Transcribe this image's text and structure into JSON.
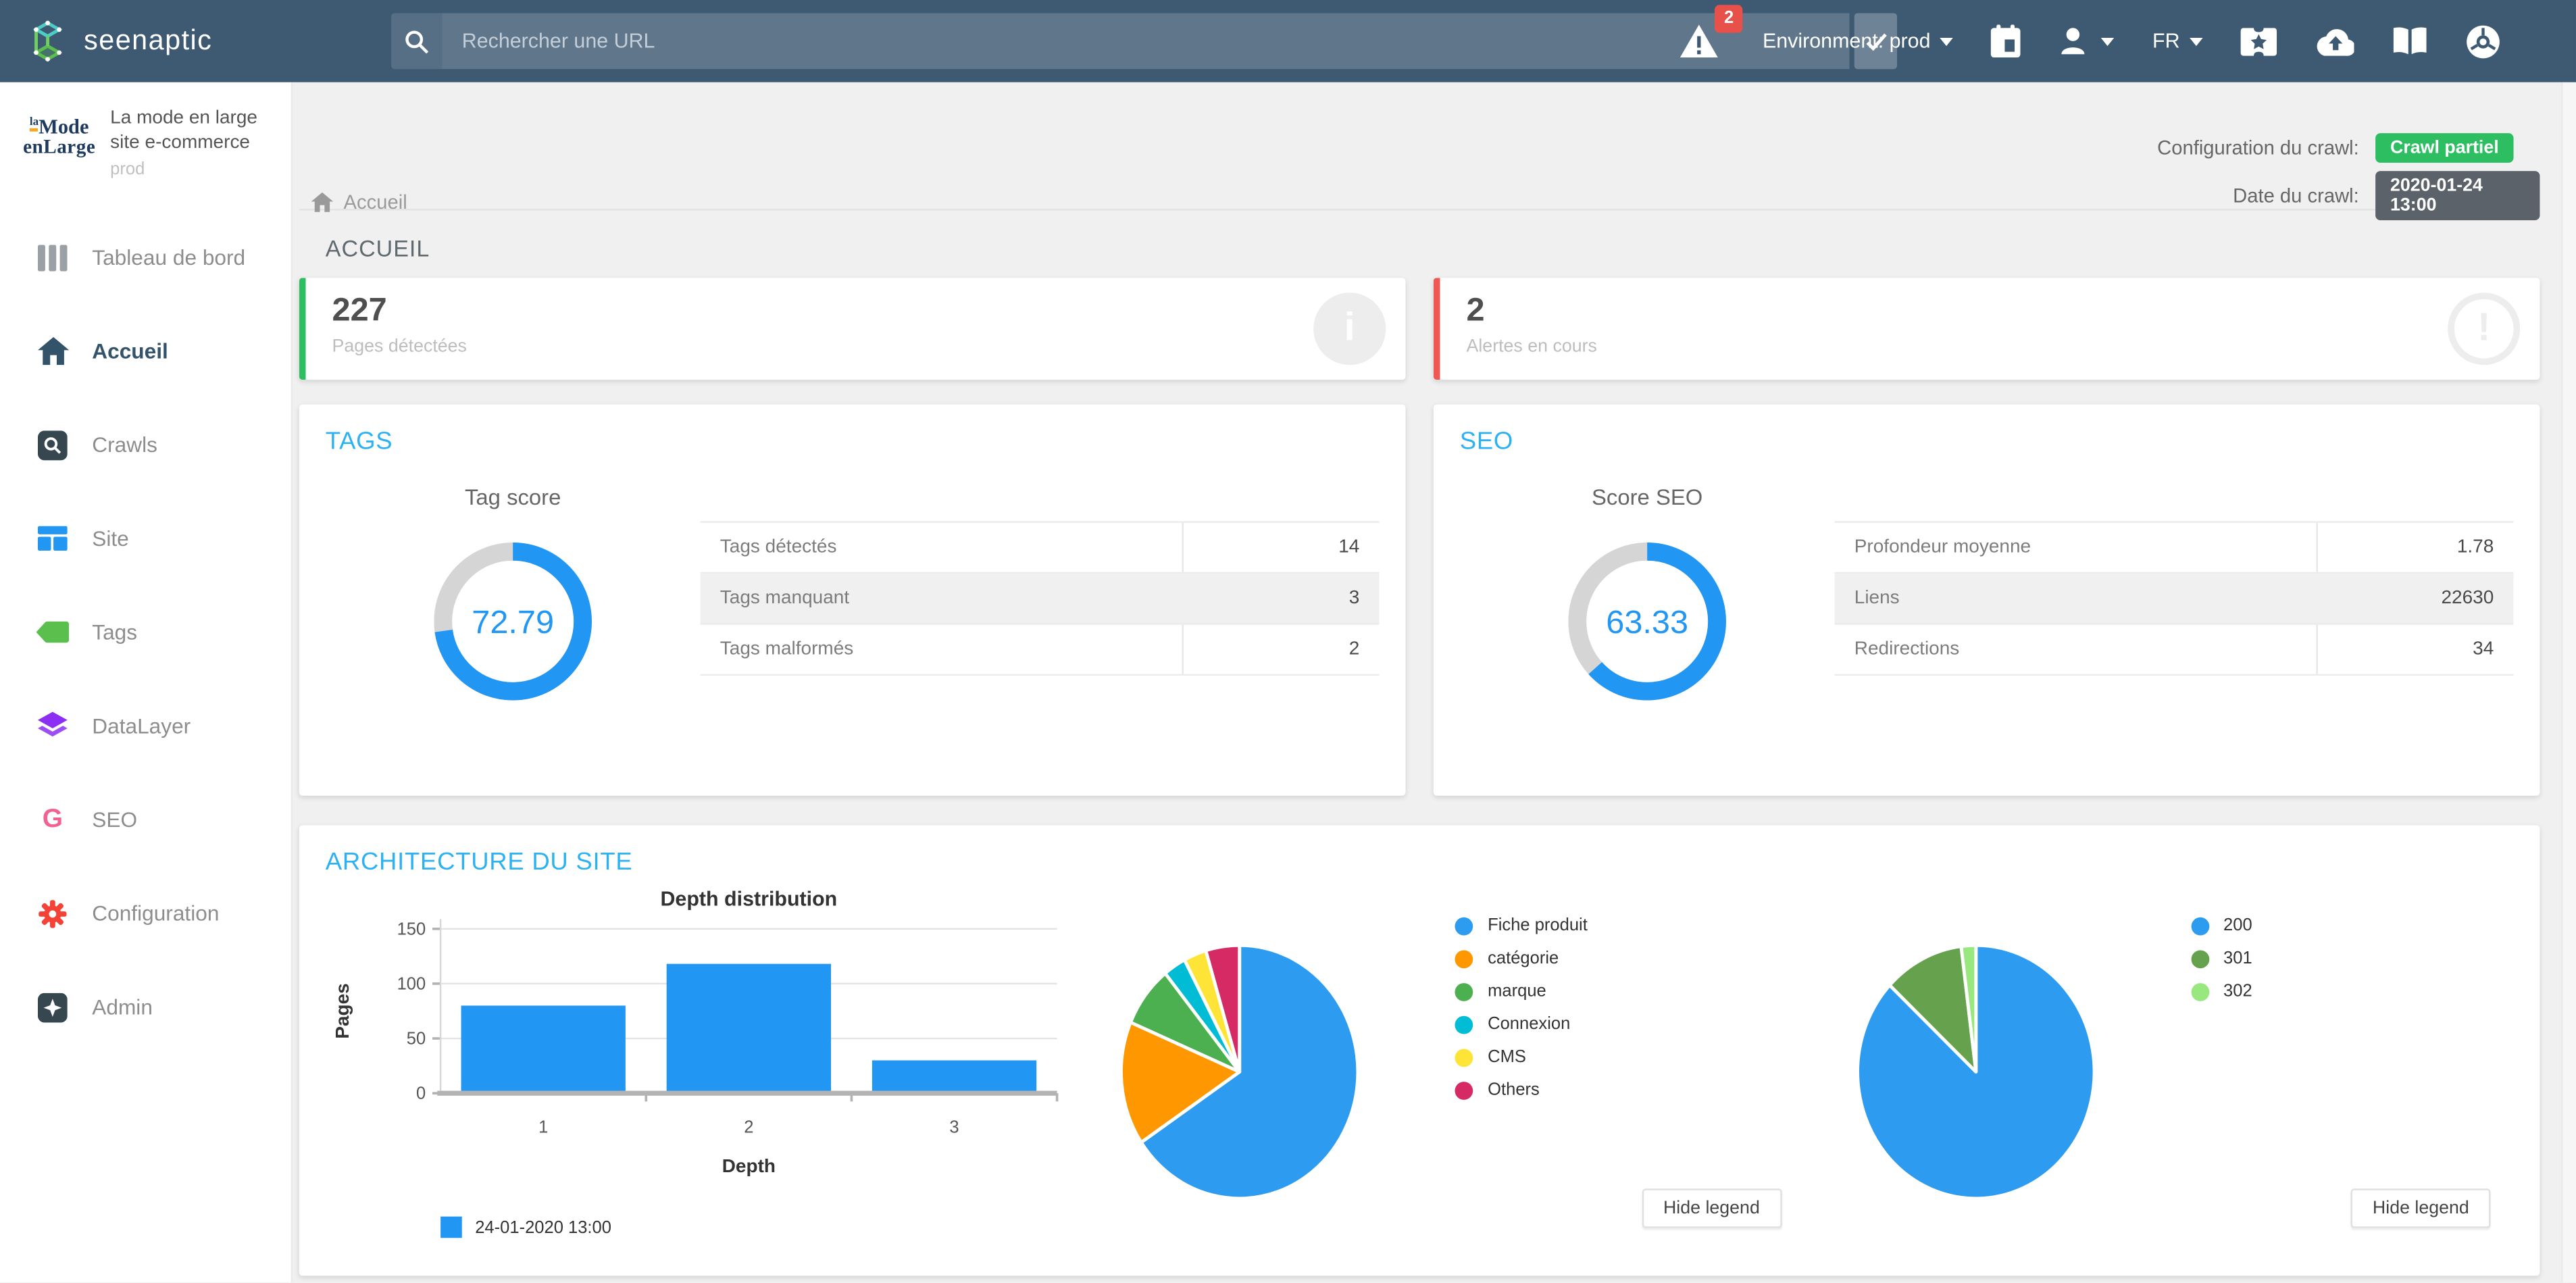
{
  "navbar": {
    "brand": "seenaptic",
    "search": {
      "placeholder": "Rechercher une URL"
    },
    "alerts_badge": "2",
    "environment_label": "Environment: prod",
    "language": "FR",
    "icons": [
      "search-icon",
      "check-icon",
      "warning-triangle-icon",
      "calendar-icon",
      "user-icon",
      "ticket-icon",
      "cloud-upload-icon",
      "book-icon",
      "chrome-icon"
    ]
  },
  "sidebar": {
    "site": {
      "logo_line1": "laMode",
      "logo_line2": "enLarge",
      "name_line1": "La mode en large",
      "name_line2": "site e-commerce",
      "env": "prod"
    },
    "items": [
      {
        "label": "Tableau de bord",
        "icon": "columns-icon",
        "active": false
      },
      {
        "label": "Accueil",
        "icon": "home-icon",
        "active": true
      },
      {
        "label": "Crawls",
        "icon": "crawl-search-icon",
        "active": false
      },
      {
        "label": "Site",
        "icon": "site-grid-icon",
        "active": false
      },
      {
        "label": "Tags",
        "icon": "tag-icon",
        "active": false
      },
      {
        "label": "DataLayer",
        "icon": "layers-icon",
        "active": false
      },
      {
        "label": "SEO",
        "icon": "g-letter-icon",
        "active": false
      },
      {
        "label": "Configuration",
        "icon": "gear-icon",
        "active": false
      },
      {
        "label": "Admin",
        "icon": "admin-star-icon",
        "active": false
      }
    ]
  },
  "topbar": {
    "breadcrumb": "Accueil",
    "crawl_config_label": "Configuration du crawl:",
    "crawl_config_value": "Crawl partiel",
    "crawl_date_label": "Date du crawl:",
    "crawl_date_value": "2020-01-24 13:00"
  },
  "accueil": {
    "section_title": "ACCUEIL",
    "cards": [
      {
        "value": "227",
        "label": "Pages détectées",
        "icon_glyph": "i",
        "border_color": "#2cbe61"
      },
      {
        "value": "2",
        "label": "Alertes en cours",
        "icon_glyph": "!",
        "border_color": "#f05753"
      }
    ]
  },
  "tags": {
    "title": "TAGS",
    "score_label": "Tag score",
    "donut": {
      "type": "donut",
      "value": 72.79,
      "max": 100,
      "display": "72.79",
      "color": "#2196f3",
      "track": "#d5d5d5"
    },
    "table": [
      {
        "label": "Tags détectés",
        "value": "14"
      },
      {
        "label": "Tags manquant",
        "value": "3"
      },
      {
        "label": "Tags malformés",
        "value": "2"
      }
    ]
  },
  "seo": {
    "title": "SEO",
    "score_label": "Score SEO",
    "donut": {
      "type": "donut",
      "value": 63.33,
      "max": 100,
      "display": "63.33",
      "color": "#2196f3",
      "track": "#d5d5d5"
    },
    "table": [
      {
        "label": "Profondeur moyenne",
        "value": "1.78"
      },
      {
        "label": "Liens",
        "value": "22630"
      },
      {
        "label": "Redirections",
        "value": "34"
      }
    ]
  },
  "architecture": {
    "title": "ARCHITECTURE DU SITE",
    "hide_legend_label": "Hide legend",
    "chart_data": [
      {
        "type": "bar",
        "title": "Depth distribution",
        "xlabel": "Depth",
        "ylabel": "Pages",
        "categories": [
          "1",
          "2",
          "3"
        ],
        "values": [
          80,
          118,
          30
        ],
        "ylim": [
          0,
          150
        ],
        "yticks": [
          0,
          50,
          100,
          150
        ],
        "grid": true,
        "legend": [
          "24-01-2020 13:00"
        ],
        "legend_position": "bottom",
        "color": "#2196f3"
      },
      {
        "type": "pie",
        "labels": [
          "Fiche produit",
          "catégorie",
          "marque",
          "Connexion",
          "CMS",
          "Others"
        ],
        "values": [
          65.6,
          15.8,
          7.8,
          3.1,
          3.1,
          4.6
        ],
        "colors": [
          "#2d9cf0",
          "#ff9800",
          "#4caf50",
          "#00bcd4",
          "#ffe438",
          "#d62a64"
        ],
        "legend_position": "right"
      },
      {
        "type": "pie",
        "labels": [
          "200",
          "301",
          "302"
        ],
        "values": [
          87,
          11,
          2
        ],
        "colors": [
          "#2d9cf0",
          "#66a14e",
          "#98e87f"
        ],
        "legend_position": "right"
      }
    ]
  },
  "colors": {
    "navbar_bg": "#3e5a72",
    "accent_blue": "#2196f3",
    "title_blue": "#2cb2f3",
    "badge_green": "#2cbe61",
    "badge_dark": "#5b6269",
    "alert_red": "#e8504a",
    "card_green_border": "#2cbe61",
    "card_red_border": "#f05753"
  }
}
